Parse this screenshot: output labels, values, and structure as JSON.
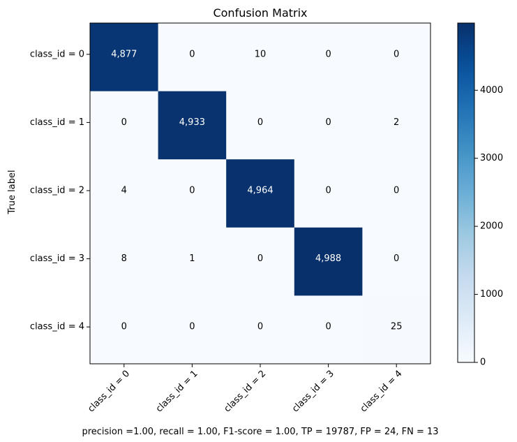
{
  "chart_data": {
    "type": "heatmap",
    "title": "Confusion Matrix",
    "xlabel": "",
    "ylabel": "True label",
    "row_labels": [
      "class_id = 0",
      "class_id = 1",
      "class_id = 2",
      "class_id = 3",
      "class_id = 4"
    ],
    "col_labels": [
      "class_id = 0",
      "class_id = 1",
      "class_id = 2",
      "class_id = 3",
      "class_id = 4"
    ],
    "values": [
      [
        4877,
        0,
        10,
        0,
        0
      ],
      [
        0,
        4933,
        0,
        0,
        2
      ],
      [
        4,
        0,
        4964,
        0,
        0
      ],
      [
        8,
        1,
        0,
        4988,
        0
      ],
      [
        0,
        0,
        0,
        0,
        25
      ]
    ],
    "cell_labels": [
      [
        "4,877",
        "0",
        "10",
        "0",
        "0"
      ],
      [
        "0",
        "4,933",
        "0",
        "0",
        "2"
      ],
      [
        "4",
        "0",
        "4,964",
        "0",
        "0"
      ],
      [
        "8",
        "1",
        "0",
        "4,988",
        "0"
      ],
      [
        "0",
        "0",
        "0",
        "0",
        "25"
      ]
    ],
    "colormap": "Blues",
    "colormap_low": "#f7fbff",
    "colormap_high": "#08306b",
    "colorbar": {
      "range": [
        0,
        4988
      ],
      "ticks": [
        0,
        1000,
        2000,
        3000,
        4000
      ],
      "tick_labels": [
        "0",
        "1000",
        "2000",
        "3000",
        "4000"
      ]
    },
    "grid": false,
    "footer": "precision =1.00, recall = 1.00, F1-score = 1.00, TP = 19787, FP = 24, FN = 13"
  }
}
